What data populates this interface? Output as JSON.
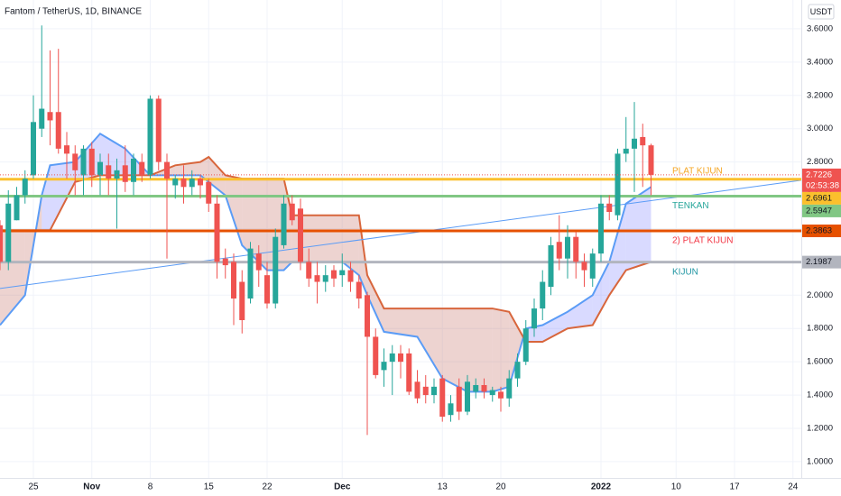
{
  "chart_data": {
    "type": "candlestick",
    "title": "Fantom / TetherUS, 1D, BINANCE",
    "currency": "USDT",
    "countdown": "02:53:38",
    "up_color": "#26a69a",
    "down_color": "#ef5350",
    "ylim": [
      0.902,
      3.773
    ],
    "yticks": [
      {
        "value": 1,
        "label": "1.0000"
      },
      {
        "value": 1.2,
        "label": "1.2000"
      },
      {
        "value": 1.4,
        "label": "1.4000"
      },
      {
        "value": 1.6,
        "label": "1.6000"
      },
      {
        "value": 1.8,
        "label": "1.8000"
      },
      {
        "value": 2,
        "label": "2.0000"
      },
      {
        "value": 2.2,
        "label": "2.2000"
      },
      {
        "value": 2.4,
        "label": "2.4000"
      },
      {
        "value": 2.6,
        "label": "2.6000"
      },
      {
        "value": 2.8,
        "label": "2.8000"
      },
      {
        "value": 3,
        "label": "3.0000"
      },
      {
        "value": 3.2,
        "label": "3.2000"
      },
      {
        "value": 3.4,
        "label": "3.4000"
      },
      {
        "value": 3.6,
        "label": "3.6000"
      }
    ],
    "xlim": [
      "2021-10-21",
      "2022-01-25"
    ],
    "xticks": [
      {
        "value": "2021-10-25",
        "label": "25"
      },
      {
        "value": "2021-11-01",
        "label": "Nov"
      },
      {
        "value": "2021-11-08",
        "label": "8"
      },
      {
        "value": "2021-11-15",
        "label": "15"
      },
      {
        "value": "2021-11-22",
        "label": "22"
      },
      {
        "value": "2021-12-01",
        "label": "Dec"
      },
      {
        "value": "2021-12-13",
        "label": "13"
      },
      {
        "value": "2021-12-20",
        "label": "20"
      },
      {
        "value": "2022-01-01",
        "label": "2022"
      },
      {
        "value": "2022-01-10",
        "label": "10"
      },
      {
        "value": "2022-01-17",
        "label": "17"
      },
      {
        "value": "2022-01-24",
        "label": "24"
      }
    ],
    "grid": true,
    "candles": {
      "x": [
        "2021-10-21",
        "2021-10-22",
        "2021-10-23",
        "2021-10-24",
        "2021-10-25",
        "2021-10-26",
        "2021-10-27",
        "2021-10-28",
        "2021-10-29",
        "2021-10-30",
        "2021-10-31",
        "2021-11-01",
        "2021-11-02",
        "2021-11-03",
        "2021-11-04",
        "2021-11-05",
        "2021-11-06",
        "2021-11-07",
        "2021-11-08",
        "2021-11-09",
        "2021-11-10",
        "2021-11-11",
        "2021-11-12",
        "2021-11-13",
        "2021-11-14",
        "2021-11-15",
        "2021-11-16",
        "2021-11-17",
        "2021-11-18",
        "2021-11-19",
        "2021-11-20",
        "2021-11-21",
        "2021-11-22",
        "2021-11-23",
        "2021-11-24",
        "2021-11-25",
        "2021-11-26",
        "2021-11-27",
        "2021-11-28",
        "2021-11-29",
        "2021-11-30",
        "2021-12-01",
        "2021-12-02",
        "2021-12-03",
        "2021-12-04",
        "2021-12-05",
        "2021-12-06",
        "2021-12-07",
        "2021-12-08",
        "2021-12-09",
        "2021-12-10",
        "2021-12-11",
        "2021-12-12",
        "2021-12-13",
        "2021-12-14",
        "2021-12-15",
        "2021-12-16",
        "2021-12-17",
        "2021-12-18",
        "2021-12-19",
        "2021-12-20",
        "2021-12-21",
        "2021-12-22",
        "2021-12-23",
        "2021-12-24",
        "2021-12-25",
        "2021-12-26",
        "2021-12-27",
        "2021-12-28",
        "2021-12-29",
        "2021-12-30",
        "2021-12-31",
        "2022-01-01",
        "2022-01-02",
        "2022-01-03",
        "2022-01-04",
        "2022-01-05",
        "2022-01-06",
        "2022-01-07"
      ],
      "open": [
        2.42,
        2.2,
        2.45,
        2.6,
        2.72,
        3.0,
        3.1,
        3.1,
        2.9,
        2.85,
        2.72,
        2.88,
        2.72,
        2.78,
        2.7,
        2.78,
        2.68,
        2.8,
        2.72,
        3.18,
        2.8,
        2.66,
        2.7,
        2.65,
        2.7,
        2.68,
        2.55,
        2.22,
        2.2,
        2.08,
        1.98,
        2.25,
        2.12,
        1.95,
        2.3,
        2.55,
        2.52,
        2.2,
        2.12,
        2.08,
        2.15,
        2.12,
        2.15,
        2.08,
        2.0,
        1.75,
        1.55,
        1.6,
        1.65,
        1.65,
        1.48,
        1.45,
        1.4,
        1.5,
        1.28,
        1.45,
        1.3,
        1.42,
        1.46,
        1.4,
        1.42,
        1.38,
        1.5,
        1.6,
        1.8,
        1.92,
        2.05,
        2.32,
        2.22,
        2.35,
        2.2,
        2.1,
        2.25,
        2.55,
        2.48,
        2.85,
        2.88,
        2.95,
        2.9
      ],
      "high": [
        2.45,
        2.63,
        2.65,
        2.75,
        3.2,
        3.62,
        3.47,
        3.48,
        2.98,
        2.9,
        2.9,
        2.92,
        2.85,
        2.85,
        2.82,
        2.9,
        2.85,
        2.85,
        3.2,
        3.2,
        2.85,
        2.72,
        2.78,
        2.75,
        2.72,
        2.7,
        2.6,
        2.28,
        2.25,
        2.15,
        2.32,
        2.3,
        2.2,
        2.4,
        2.6,
        2.6,
        2.58,
        2.28,
        2.2,
        2.18,
        2.18,
        2.25,
        2.2,
        2.12,
        2.02,
        1.8,
        1.68,
        1.7,
        1.7,
        1.68,
        1.55,
        1.52,
        1.5,
        1.52,
        1.4,
        1.5,
        1.52,
        1.5,
        1.5,
        1.45,
        1.45,
        1.55,
        1.65,
        1.85,
        1.98,
        2.15,
        2.35,
        2.48,
        2.42,
        2.38,
        2.25,
        2.28,
        2.6,
        2.6,
        2.88,
        3.07,
        3.16,
        3.03,
        2.91
      ],
      "low": [
        2.15,
        2.15,
        2.45,
        2.55,
        2.7,
        2.95,
        2.9,
        2.85,
        2.7,
        2.6,
        2.6,
        2.65,
        2.6,
        2.6,
        2.4,
        2.62,
        2.6,
        2.68,
        2.7,
        2.75,
        2.22,
        2.58,
        2.55,
        2.6,
        2.58,
        2.5,
        2.1,
        2.1,
        1.82,
        1.77,
        1.95,
        2.05,
        1.92,
        1.92,
        2.28,
        2.42,
        2.15,
        2.05,
        1.95,
        2.02,
        2.05,
        2.05,
        2.02,
        1.92,
        1.16,
        1.5,
        1.45,
        1.4,
        1.5,
        1.4,
        1.35,
        1.35,
        1.35,
        1.24,
        1.24,
        1.25,
        1.28,
        1.38,
        1.38,
        1.36,
        1.3,
        1.33,
        1.45,
        1.58,
        1.75,
        1.85,
        2.0,
        2.15,
        2.1,
        2.1,
        2.05,
        2.05,
        2.2,
        2.45,
        2.45,
        2.8,
        2.62,
        2.65,
        2.6
      ],
      "close": [
        2.2,
        2.55,
        2.6,
        2.7,
        3.04,
        3.12,
        3.05,
        2.88,
        2.85,
        2.75,
        2.88,
        2.72,
        2.8,
        2.7,
        2.75,
        2.68,
        2.82,
        2.72,
        3.18,
        2.8,
        2.7,
        2.7,
        2.65,
        2.7,
        2.66,
        2.55,
        2.2,
        2.18,
        1.98,
        1.85,
        2.28,
        2.15,
        1.95,
        2.35,
        2.55,
        2.45,
        2.2,
        2.1,
        2.08,
        2.12,
        2.1,
        2.15,
        2.08,
        1.98,
        1.75,
        1.52,
        1.6,
        1.65,
        1.6,
        1.42,
        1.38,
        1.4,
        1.45,
        1.27,
        1.35,
        1.3,
        1.48,
        1.46,
        1.42,
        1.43,
        1.38,
        1.5,
        1.6,
        1.8,
        1.92,
        2.08,
        2.3,
        2.22,
        2.35,
        2.2,
        2.15,
        2.25,
        2.55,
        2.5,
        2.85,
        2.88,
        2.94,
        2.9,
        2.7226
      ]
    },
    "cloud": {
      "x": [
        "2021-10-21",
        "2021-10-24",
        "2021-10-26",
        "2021-10-27",
        "2021-10-30",
        "2021-11-02",
        "2021-11-05",
        "2021-11-08",
        "2021-11-11",
        "2021-11-14",
        "2021-11-15",
        "2021-11-17",
        "2021-11-19",
        "2021-11-22",
        "2021-11-24",
        "2021-11-25",
        "2021-11-28",
        "2021-12-01",
        "2021-12-03",
        "2021-12-04",
        "2021-12-06",
        "2021-12-10",
        "2021-12-13",
        "2021-12-16",
        "2021-12-19",
        "2021-12-21",
        "2021-12-23",
        "2021-12-25",
        "2021-12-28",
        "2021-12-31",
        "2022-01-02",
        "2022-01-04",
        "2022-01-07"
      ],
      "span_a": [
        1.82,
        2.0,
        2.6,
        2.78,
        2.8,
        2.97,
        2.88,
        2.72,
        2.72,
        2.72,
        2.68,
        2.6,
        2.3,
        2.15,
        2.15,
        2.2,
        2.2,
        2.2,
        2.12,
        2.0,
        1.78,
        1.75,
        1.5,
        1.42,
        1.42,
        1.45,
        1.8,
        1.82,
        1.9,
        2.0,
        2.2,
        2.55,
        2.65
      ],
      "span_b": [
        2.39,
        2.39,
        2.39,
        2.39,
        2.68,
        2.72,
        2.72,
        2.72,
        2.78,
        2.8,
        2.83,
        2.72,
        2.7,
        2.7,
        2.7,
        2.48,
        2.48,
        2.48,
        2.48,
        2.12,
        1.92,
        1.92,
        1.92,
        1.92,
        1.92,
        1.9,
        1.72,
        1.72,
        1.8,
        1.82,
        2.0,
        2.15,
        2.2
      ],
      "color_a": "#5b9cf6",
      "color_b": "#d8663c"
    },
    "trendline": {
      "x": [
        "2021-10-21",
        "2022-01-25"
      ],
      "values": [
        2.04,
        2.69
      ],
      "color": "#5b9cf6"
    },
    "levels": [
      {
        "name": "PLAT KIJUN",
        "value": 2.6961,
        "color": "#fbc02d",
        "label_color": "#f5a623"
      },
      {
        "name": "TENKAN",
        "value": 2.5947,
        "color": "#81c784",
        "label_color": "#26a69a"
      },
      {
        "name": "2) PLAT KIJUN",
        "value": 2.3863,
        "color": "#e65100",
        "label_color": "#f23645"
      },
      {
        "name": "KIJUN",
        "value": 2.1987,
        "color": "#b2b5be",
        "label_color": "#2196a3"
      }
    ]
  }
}
